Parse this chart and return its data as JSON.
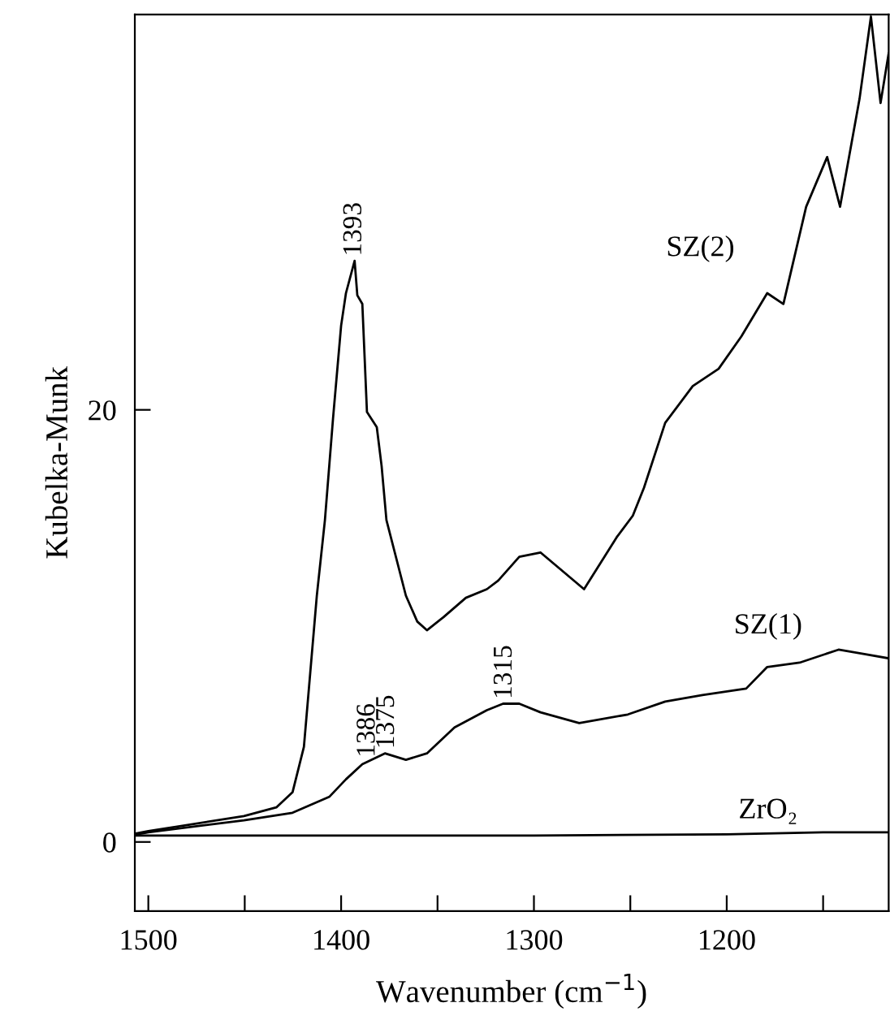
{
  "chart_data": {
    "type": "line",
    "xlabel": "Wavenumber (cm$^{−1}$)",
    "ylabel": "Kubelka-Munk",
    "xlim": [
      1507,
      1116
    ],
    "ylim": [
      -3.2,
      38.3
    ],
    "xticks": [
      1500,
      {
        "value": 1450,
        "label": null
      },
      1400,
      {
        "value": 1350,
        "label": null
      },
      1300,
      {
        "value": 1250,
        "label": null
      },
      1200,
      {
        "value": 1150,
        "label": null
      }
    ],
    "yticks": [
      0,
      20
    ],
    "series": [
      {
        "name": "SZ(2)",
        "color": "#000000",
        "x": [
          1506,
          1500,
          1450.4,
          1433.6,
          1425.2,
          1419.3,
          1412.6,
          1408.4,
          1404.2,
          1400,
          1397.5,
          1393,
          1391.6,
          1389,
          1386.6,
          1381.5,
          1379,
          1376.5,
          1366.4,
          1360.5,
          1355.5,
          1347,
          1335.3,
          1324.4,
          1318.5,
          1307.6,
          1296.6,
          1274,
          1257.1,
          1248.7,
          1242.9,
          1231.9,
          1217.6,
          1204.2,
          1192.4,
          1179,
          1170.6,
          1158.8,
          1147.9,
          1141.2,
          1131.1,
          1125.2,
          1120.2,
          1116
        ],
        "values": [
          0.4,
          0.5,
          1.2,
          1.6,
          2.3,
          4.4,
          11.4,
          14.9,
          19.6,
          23.9,
          25.4,
          26.9,
          25.3,
          24.9,
          19.9,
          19.2,
          17.4,
          14.9,
          11.4,
          10.2,
          9.8,
          10.4,
          11.3,
          11.7,
          12.1,
          13.2,
          13.4,
          11.7,
          14.1,
          15.1,
          16.4,
          19.4,
          21.1,
          21.9,
          23.4,
          25.4,
          24.9,
          29.4,
          31.7,
          29.4,
          34.4,
          38.2,
          34.2,
          36.5
        ]
      },
      {
        "name": "SZ(1)",
        "color": "#000000",
        "x": [
          1506,
          1500,
          1450.4,
          1425.2,
          1406,
          1397.5,
          1389,
          1377.3,
          1366.4,
          1355.5,
          1341.2,
          1324.4,
          1316,
          1307.6,
          1296.6,
          1276.5,
          1251.3,
          1231.9,
          1212.6,
          1189.9,
          1179,
          1162.2,
          1142,
          1128.6,
          1116
        ],
        "values": [
          0.35,
          0.45,
          1.0,
          1.35,
          2.1,
          2.9,
          3.6,
          4.1,
          3.8,
          4.1,
          5.3,
          6.1,
          6.4,
          6.4,
          6.0,
          5.5,
          5.9,
          6.5,
          6.8,
          7.1,
          8.1,
          8.3,
          8.9,
          8.7,
          8.5
        ]
      },
      {
        "name": "ZrO₂",
        "color": "#000000",
        "x": [
          1506,
          1400,
          1300,
          1200,
          1150,
          1116
        ],
        "values": [
          0.3,
          0.3,
          0.3,
          0.35,
          0.45,
          0.45
        ]
      }
    ],
    "annotations": [
      {
        "text": "1393",
        "x": 1393,
        "y": 26.9
      },
      {
        "text": "1386",
        "x": 1386,
        "y": 3.7
      },
      {
        "text": "1375",
        "x": 1376,
        "y": 4.1
      },
      {
        "text": "1315",
        "x": 1315,
        "y": 6.4
      }
    ]
  }
}
